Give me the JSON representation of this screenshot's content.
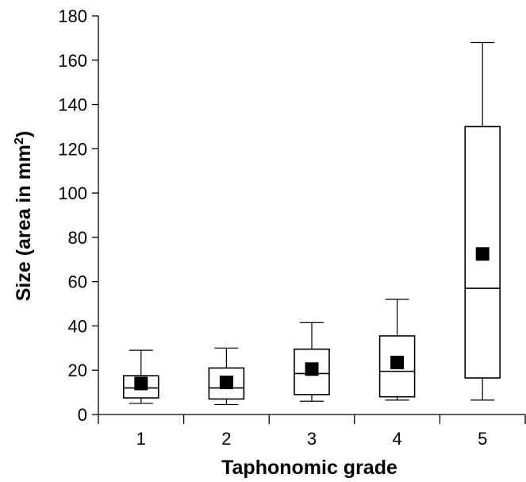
{
  "chart_data": {
    "type": "box",
    "title": "",
    "xlabel": "Taphonomic grade",
    "ylabel_main": "Size (area in mm",
    "ylabel_sup": "2",
    "ylabel_close": ")",
    "ylim": [
      0,
      180
    ],
    "yticks": [
      0,
      20,
      40,
      60,
      80,
      100,
      120,
      140,
      160,
      180
    ],
    "categories": [
      "1",
      "2",
      "3",
      "4",
      "5"
    ],
    "boxes": [
      {
        "category": "1",
        "whisker_low": 5,
        "q1": 7.5,
        "median": 12,
        "q3": 17.5,
        "whisker_high": 29,
        "mean": 14
      },
      {
        "category": "2",
        "whisker_low": 4.5,
        "q1": 7,
        "median": 12,
        "q3": 21,
        "whisker_high": 30,
        "mean": 14.5
      },
      {
        "category": "3",
        "whisker_low": 6,
        "q1": 9,
        "median": 18.5,
        "q3": 29.5,
        "whisker_high": 41.5,
        "mean": 20.5
      },
      {
        "category": "4",
        "whisker_low": 6.5,
        "q1": 8,
        "median": 19.5,
        "q3": 35.5,
        "whisker_high": 52,
        "mean": 23.5
      },
      {
        "category": "5",
        "whisker_low": 6.5,
        "q1": 16.5,
        "median": 57,
        "q3": 130,
        "whisker_high": 168,
        "mean": 72.5
      }
    ],
    "grid": false,
    "legend": "none"
  }
}
